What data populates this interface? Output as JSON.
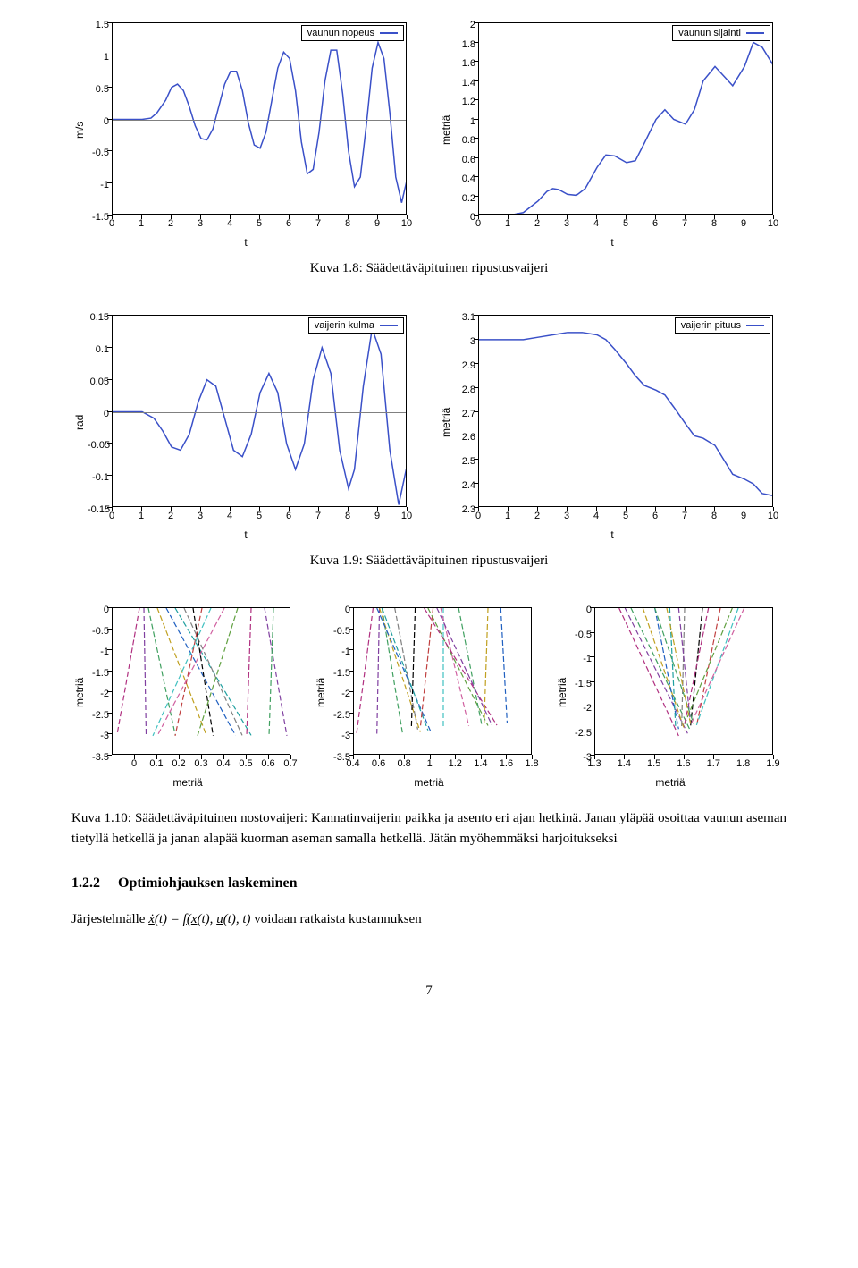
{
  "colors": {
    "series": "#3a50c8",
    "axis": "#000000",
    "zero_line": "#808080",
    "bg": "#ffffff",
    "multi": [
      "#b03080",
      "#8040a0",
      "#40a060",
      "#c0a020",
      "#2060c0",
      "#20a0a0",
      "#808080",
      "#000000",
      "#c04040",
      "#40c0c0",
      "#d060a0",
      "#60a040"
    ]
  },
  "charts": {
    "velocity": {
      "legend": "vaunun nopeus",
      "xlabel": "t",
      "ylabel": "m/s",
      "xlim": [
        0,
        10
      ],
      "ylim": [
        -1.5,
        1.5
      ],
      "xticks": [
        0,
        1,
        2,
        3,
        4,
        5,
        6,
        7,
        8,
        9,
        10
      ],
      "yticks": [
        -1.5,
        -1,
        -0.5,
        0,
        0.5,
        1,
        1.5
      ],
      "zero_at": 0,
      "data": [
        [
          0,
          0
        ],
        [
          0.5,
          0
        ],
        [
          1,
          0
        ],
        [
          1.3,
          0.02
        ],
        [
          1.5,
          0.1
        ],
        [
          1.8,
          0.3
        ],
        [
          2,
          0.5
        ],
        [
          2.2,
          0.55
        ],
        [
          2.4,
          0.45
        ],
        [
          2.6,
          0.2
        ],
        [
          2.8,
          -0.1
        ],
        [
          3,
          -0.3
        ],
        [
          3.2,
          -0.32
        ],
        [
          3.4,
          -0.15
        ],
        [
          3.6,
          0.2
        ],
        [
          3.8,
          0.55
        ],
        [
          4,
          0.75
        ],
        [
          4.2,
          0.75
        ],
        [
          4.4,
          0.45
        ],
        [
          4.6,
          -0.05
        ],
        [
          4.8,
          -0.4
        ],
        [
          5,
          -0.45
        ],
        [
          5.2,
          -0.2
        ],
        [
          5.4,
          0.3
        ],
        [
          5.6,
          0.8
        ],
        [
          5.8,
          1.05
        ],
        [
          6,
          0.95
        ],
        [
          6.2,
          0.45
        ],
        [
          6.4,
          -0.35
        ],
        [
          6.6,
          -0.85
        ],
        [
          6.8,
          -0.78
        ],
        [
          7,
          -0.2
        ],
        [
          7.2,
          0.6
        ],
        [
          7.4,
          1.08
        ],
        [
          7.6,
          1.08
        ],
        [
          7.8,
          0.4
        ],
        [
          8,
          -0.5
        ],
        [
          8.2,
          -1.05
        ],
        [
          8.4,
          -0.9
        ],
        [
          8.6,
          -0.1
        ],
        [
          8.8,
          0.8
        ],
        [
          9,
          1.2
        ],
        [
          9.2,
          0.95
        ],
        [
          9.4,
          0.1
        ],
        [
          9.6,
          -0.9
        ],
        [
          9.8,
          -1.3
        ],
        [
          10,
          -0.9
        ]
      ]
    },
    "position": {
      "legend": "vaunun sijainti",
      "xlabel": "t",
      "ylabel": "metriä",
      "xlim": [
        0,
        10
      ],
      "ylim": [
        0,
        2
      ],
      "xticks": [
        0,
        1,
        2,
        3,
        4,
        5,
        6,
        7,
        8,
        9,
        10
      ],
      "yticks": [
        0,
        0.2,
        0.4,
        0.6,
        0.8,
        1,
        1.2,
        1.4,
        1.6,
        1.8,
        2
      ],
      "data": [
        [
          0,
          0
        ],
        [
          1,
          0
        ],
        [
          1.5,
          0.03
        ],
        [
          2,
          0.15
        ],
        [
          2.3,
          0.25
        ],
        [
          2.5,
          0.28
        ],
        [
          2.7,
          0.27
        ],
        [
          3,
          0.22
        ],
        [
          3.3,
          0.21
        ],
        [
          3.6,
          0.28
        ],
        [
          4,
          0.5
        ],
        [
          4.3,
          0.63
        ],
        [
          4.6,
          0.62
        ],
        [
          5,
          0.55
        ],
        [
          5.3,
          0.57
        ],
        [
          5.6,
          0.75
        ],
        [
          6,
          1.0
        ],
        [
          6.3,
          1.1
        ],
        [
          6.6,
          1.0
        ],
        [
          7,
          0.95
        ],
        [
          7.3,
          1.1
        ],
        [
          7.6,
          1.4
        ],
        [
          8,
          1.55
        ],
        [
          8.3,
          1.45
        ],
        [
          8.6,
          1.35
        ],
        [
          9,
          1.55
        ],
        [
          9.3,
          1.8
        ],
        [
          9.6,
          1.75
        ],
        [
          10,
          1.55
        ]
      ]
    },
    "angle": {
      "legend": "vaijerin kulma",
      "xlabel": "t",
      "ylabel": "rad",
      "xlim": [
        0,
        10
      ],
      "ylim": [
        -0.15,
        0.15
      ],
      "xticks": [
        0,
        1,
        2,
        3,
        4,
        5,
        6,
        7,
        8,
        9,
        10
      ],
      "yticks": [
        -0.15,
        -0.1,
        -0.05,
        0,
        0.05,
        0.1,
        0.15
      ],
      "zero_at": 0,
      "data": [
        [
          0,
          0
        ],
        [
          1,
          0
        ],
        [
          1.4,
          -0.01
        ],
        [
          1.7,
          -0.03
        ],
        [
          2,
          -0.055
        ],
        [
          2.3,
          -0.06
        ],
        [
          2.6,
          -0.035
        ],
        [
          2.9,
          0.015
        ],
        [
          3.2,
          0.05
        ],
        [
          3.5,
          0.04
        ],
        [
          3.8,
          -0.01
        ],
        [
          4.1,
          -0.06
        ],
        [
          4.4,
          -0.07
        ],
        [
          4.7,
          -0.035
        ],
        [
          5,
          0.03
        ],
        [
          5.3,
          0.06
        ],
        [
          5.6,
          0.03
        ],
        [
          5.9,
          -0.05
        ],
        [
          6.2,
          -0.09
        ],
        [
          6.5,
          -0.05
        ],
        [
          6.8,
          0.05
        ],
        [
          7.1,
          0.1
        ],
        [
          7.4,
          0.06
        ],
        [
          7.7,
          -0.06
        ],
        [
          8,
          -0.12
        ],
        [
          8.2,
          -0.09
        ],
        [
          8.5,
          0.04
        ],
        [
          8.8,
          0.13
        ],
        [
          9.1,
          0.09
        ],
        [
          9.4,
          -0.06
        ],
        [
          9.7,
          -0.145
        ],
        [
          10,
          -0.08
        ]
      ]
    },
    "length": {
      "legend": "vaijerin pituus",
      "xlabel": "t",
      "ylabel": "metriä",
      "xlim": [
        0,
        10
      ],
      "ylim": [
        2.3,
        3.1
      ],
      "xticks": [
        0,
        1,
        2,
        3,
        4,
        5,
        6,
        7,
        8,
        9,
        10
      ],
      "yticks": [
        2.3,
        2.4,
        2.5,
        2.6,
        2.7,
        2.8,
        2.9,
        3,
        3.1
      ],
      "data": [
        [
          0,
          3.0
        ],
        [
          1,
          3.0
        ],
        [
          1.5,
          3.0
        ],
        [
          2,
          3.01
        ],
        [
          2.5,
          3.02
        ],
        [
          3,
          3.03
        ],
        [
          3.5,
          3.03
        ],
        [
          4,
          3.02
        ],
        [
          4.3,
          3.0
        ],
        [
          4.6,
          2.96
        ],
        [
          5,
          2.9
        ],
        [
          5.3,
          2.85
        ],
        [
          5.6,
          2.81
        ],
        [
          6,
          2.79
        ],
        [
          6.3,
          2.77
        ],
        [
          6.6,
          2.72
        ],
        [
          7,
          2.65
        ],
        [
          7.3,
          2.6
        ],
        [
          7.6,
          2.59
        ],
        [
          8,
          2.56
        ],
        [
          8.3,
          2.5
        ],
        [
          8.6,
          2.44
        ],
        [
          9,
          2.42
        ],
        [
          9.3,
          2.4
        ],
        [
          9.6,
          2.36
        ],
        [
          10,
          2.35
        ]
      ]
    },
    "triple1": {
      "xlabel": "metriä",
      "ylabel": "metriä",
      "xlim": [
        -0.1,
        0.7
      ],
      "ylim": [
        -3.5,
        0
      ],
      "xticks": [
        0,
        0.1,
        0.2,
        0.3,
        0.4,
        0.5,
        0.6,
        0.7
      ],
      "yticks": [
        -3.5,
        -3,
        -2.5,
        -2,
        -1.5,
        -1,
        -0.5,
        0
      ],
      "lines": [
        [
          [
            0.02,
            0
          ],
          [
            -0.08,
            -3.0
          ]
        ],
        [
          [
            0.04,
            0
          ],
          [
            0.05,
            -3.0
          ]
        ],
        [
          [
            0.06,
            0
          ],
          [
            0.18,
            -3.0
          ]
        ],
        [
          [
            0.1,
            0
          ],
          [
            0.32,
            -3.02
          ]
        ],
        [
          [
            0.14,
            0
          ],
          [
            0.45,
            -3.02
          ]
        ],
        [
          [
            0.18,
            0
          ],
          [
            0.52,
            -3.02
          ]
        ],
        [
          [
            0.22,
            0
          ],
          [
            0.48,
            -3.02
          ]
        ],
        [
          [
            0.26,
            0
          ],
          [
            0.35,
            -3.03
          ]
        ],
        [
          [
            0.3,
            0
          ],
          [
            0.18,
            -3.03
          ]
        ],
        [
          [
            0.34,
            0
          ],
          [
            0.08,
            -3.03
          ]
        ],
        [
          [
            0.4,
            0
          ],
          [
            0.1,
            -3.03
          ]
        ],
        [
          [
            0.46,
            0
          ],
          [
            0.28,
            -3.03
          ]
        ],
        [
          [
            0.52,
            0
          ],
          [
            0.5,
            -3.03
          ]
        ],
        [
          [
            0.58,
            0
          ],
          [
            0.68,
            -3.03
          ]
        ],
        [
          [
            0.62,
            0
          ],
          [
            0.6,
            -3.03
          ]
        ]
      ]
    },
    "triple2": {
      "xlabel": "metriä",
      "ylabel": "metriä",
      "xlim": [
        0.4,
        1.8
      ],
      "ylim": [
        -3.5,
        0
      ],
      "xticks": [
        0.4,
        0.6,
        0.8,
        1,
        1.2,
        1.4,
        1.6,
        1.8
      ],
      "yticks": [
        -3.5,
        -3,
        -2.5,
        -2,
        -1.5,
        -1,
        -0.5,
        0
      ],
      "lines": [
        [
          [
            0.55,
            0
          ],
          [
            0.42,
            -3.0
          ]
        ],
        [
          [
            0.6,
            0
          ],
          [
            0.58,
            -2.98
          ]
        ],
        [
          [
            0.62,
            0
          ],
          [
            0.78,
            -2.96
          ]
        ],
        [
          [
            0.6,
            0
          ],
          [
            0.92,
            -2.94
          ]
        ],
        [
          [
            0.58,
            0
          ],
          [
            1.0,
            -2.92
          ]
        ],
        [
          [
            0.62,
            0
          ],
          [
            0.98,
            -2.9
          ]
        ],
        [
          [
            0.72,
            0
          ],
          [
            0.9,
            -2.88
          ]
        ],
        [
          [
            0.88,
            0
          ],
          [
            0.85,
            -2.86
          ]
        ],
        [
          [
            1.02,
            0
          ],
          [
            0.92,
            -2.84
          ]
        ],
        [
          [
            1.1,
            0
          ],
          [
            1.1,
            -2.82
          ]
        ],
        [
          [
            1.08,
            0
          ],
          [
            1.3,
            -2.8
          ]
        ],
        [
          [
            0.98,
            0
          ],
          [
            1.45,
            -2.79
          ]
        ],
        [
          [
            0.95,
            0
          ],
          [
            1.52,
            -2.78
          ]
        ],
        [
          [
            1.05,
            0
          ],
          [
            1.48,
            -2.77
          ]
        ],
        [
          [
            1.22,
            0
          ],
          [
            1.4,
            -2.75
          ]
        ],
        [
          [
            1.45,
            0
          ],
          [
            1.42,
            -2.73
          ]
        ],
        [
          [
            1.55,
            0
          ],
          [
            1.6,
            -2.72
          ]
        ]
      ]
    },
    "triple3": {
      "xlabel": "metriä",
      "ylabel": "metriä",
      "xlim": [
        1.3,
        1.9
      ],
      "ylim": [
        -3,
        0
      ],
      "xticks": [
        1.3,
        1.4,
        1.5,
        1.6,
        1.7,
        1.8,
        1.9
      ],
      "yticks": [
        -3,
        -2.5,
        -2,
        -1.5,
        -1,
        -0.5,
        0
      ],
      "lines": [
        [
          [
            1.38,
            0
          ],
          [
            1.58,
            -2.6
          ]
        ],
        [
          [
            1.4,
            0
          ],
          [
            1.61,
            -2.55
          ]
        ],
        [
          [
            1.42,
            0
          ],
          [
            1.62,
            -2.5
          ]
        ],
        [
          [
            1.46,
            0
          ],
          [
            1.6,
            -2.48
          ]
        ],
        [
          [
            1.5,
            0
          ],
          [
            1.58,
            -2.46
          ]
        ],
        [
          [
            1.55,
            0
          ],
          [
            1.57,
            -2.44
          ]
        ],
        [
          [
            1.6,
            0
          ],
          [
            1.59,
            -2.42
          ]
        ],
        [
          [
            1.66,
            0
          ],
          [
            1.62,
            -2.4
          ]
        ],
        [
          [
            1.72,
            0
          ],
          [
            1.64,
            -2.4
          ]
        ],
        [
          [
            1.78,
            0
          ],
          [
            1.64,
            -2.38
          ]
        ],
        [
          [
            1.8,
            0
          ],
          [
            1.62,
            -2.38
          ]
        ],
        [
          [
            1.76,
            0
          ],
          [
            1.6,
            -2.36
          ]
        ],
        [
          [
            1.68,
            0
          ],
          [
            1.6,
            -2.36
          ]
        ],
        [
          [
            1.58,
            0
          ],
          [
            1.62,
            -2.35
          ]
        ],
        [
          [
            1.5,
            0
          ],
          [
            1.63,
            -2.35
          ]
        ],
        [
          [
            1.54,
            0
          ],
          [
            1.62,
            -2.35
          ]
        ]
      ]
    }
  },
  "captions": {
    "fig18": "Kuva 1.8: Säädettäväpituinen ripustusvaijeri",
    "fig19": "Kuva 1.9: Säädettäväpituinen ripustusvaijeri"
  },
  "paragraph": "Kuva 1.10: Säädettäväpituinen nostovaijeri: Kannatinvaijerin paikka ja asento eri ajan hetkinä. Janan yläpää osoittaa vaunun aseman tietyllä hetkellä ja janan alapää kuorman aseman samalla hetkellä. Jätän myöhemmäksi harjoitukseksi",
  "section": {
    "number": "1.2.2",
    "title": "Optimiohjauksen laskeminen"
  },
  "equation_intro": "Järjestelmälle ẋ(t) = f(x(t), u(t), t) voidaan ratkaista kustannuksen",
  "pagenum": "7"
}
